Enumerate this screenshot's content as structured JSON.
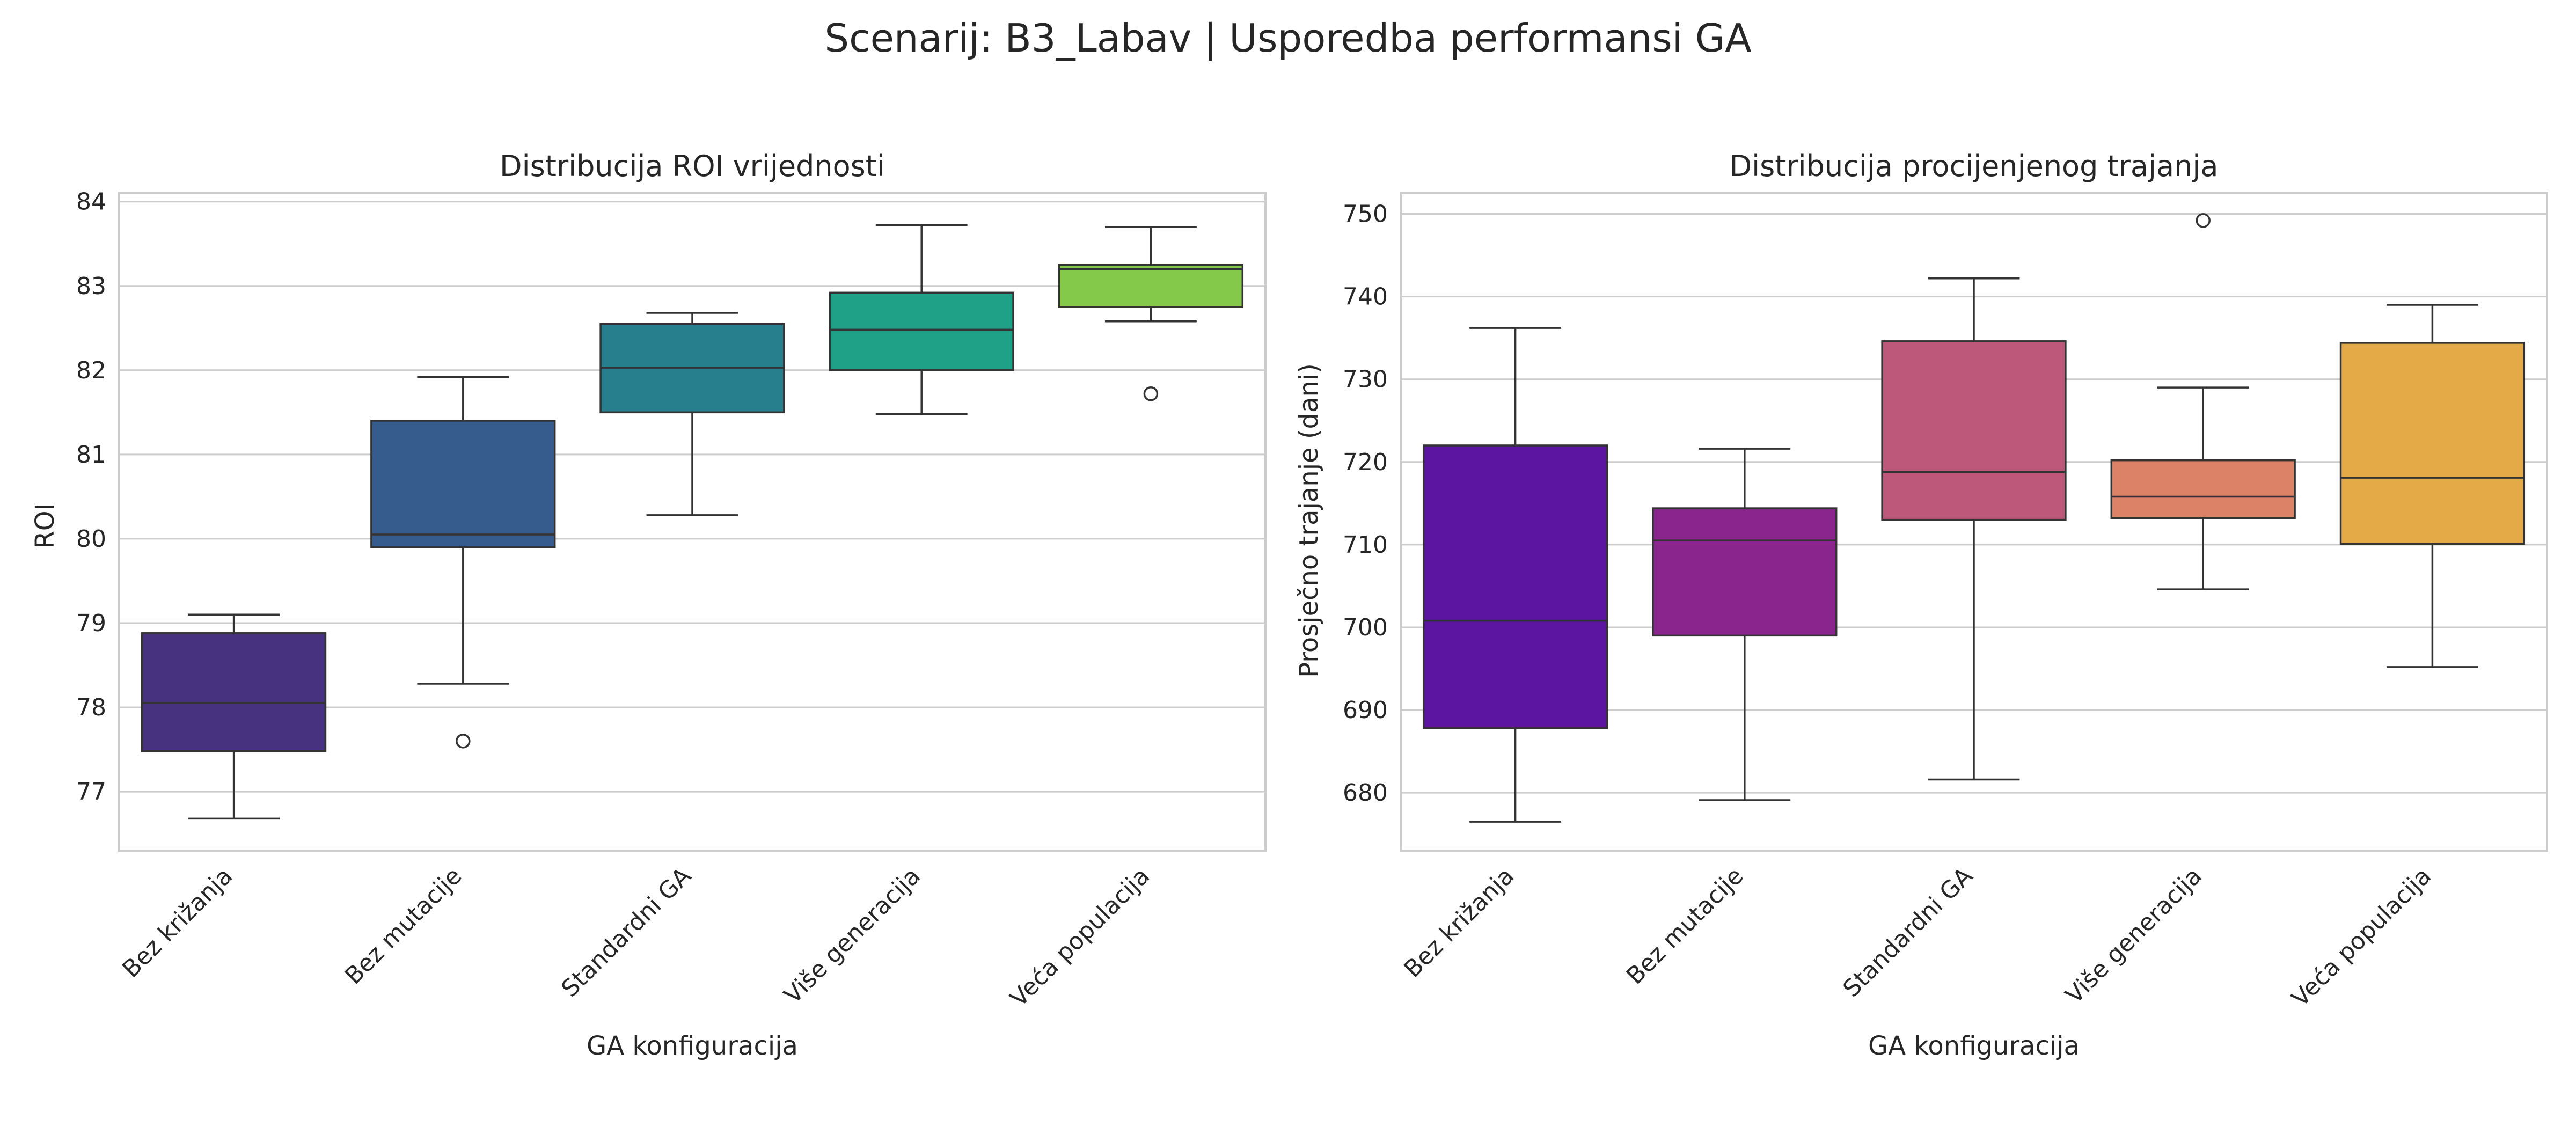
{
  "figure": {
    "title": "Scenarij: B3_Labav | Usporedba performansi GA"
  },
  "chart_data": [
    {
      "type": "box",
      "title": "Distribucija ROI vrijednosti",
      "xlabel": "GA konfiguracija",
      "ylabel": "ROI",
      "ylim": [
        76.3,
        84.1
      ],
      "yticks": [
        "77",
        "78",
        "79",
        "80",
        "81",
        "82",
        "83",
        "84"
      ],
      "grid": true,
      "categories": [
        "Bez križanja",
        "Bez mutacije",
        "Standardni GA",
        "Više generacija",
        "Veća populacija"
      ],
      "boxes": [
        {
          "category": "Bez križanja",
          "whisker_low": 76.68,
          "q1": 77.48,
          "median": 78.05,
          "q3": 78.88,
          "whisker_high": 79.1,
          "outliers": [],
          "color": "#46327e"
        },
        {
          "category": "Bez mutacije",
          "whisker_low": 78.28,
          "q1": 79.9,
          "median": 80.05,
          "q3": 81.4,
          "whisker_high": 81.92,
          "outliers": [
            77.6
          ],
          "color": "#365c8d"
        },
        {
          "category": "Standardni GA",
          "whisker_low": 80.28,
          "q1": 81.5,
          "median": 82.03,
          "q3": 82.55,
          "whisker_high": 82.68,
          "outliers": [],
          "color": "#277f8e"
        },
        {
          "category": "Više generacija",
          "whisker_low": 81.48,
          "q1": 82.0,
          "median": 82.48,
          "q3": 82.92,
          "whisker_high": 83.72,
          "outliers": [],
          "color": "#1fa187"
        },
        {
          "category": "Veća populacija",
          "whisker_low": 82.58,
          "q1": 82.75,
          "median": 83.2,
          "q3": 83.25,
          "whisker_high": 83.7,
          "outliers": [
            81.72
          ],
          "color": "#84c94a"
        }
      ]
    },
    {
      "type": "box",
      "title": "Distribucija procijenjenog trajanja",
      "xlabel": "GA konfiguracija",
      "ylabel": "Prosječno trajanje (dani)",
      "ylim": [
        673,
        752.5
      ],
      "yticks": [
        "680",
        "690",
        "700",
        "710",
        "720",
        "730",
        "740",
        "750"
      ],
      "grid": true,
      "categories": [
        "Bez križanja",
        "Bez mutacije",
        "Standardni GA",
        "Više generacija",
        "Veća populacija"
      ],
      "boxes": [
        {
          "category": "Bez križanja",
          "whisker_low": 676.5,
          "q1": 687.8,
          "median": 700.8,
          "q3": 722.0,
          "whisker_high": 736.2,
          "outliers": [],
          "color": "#5c15a0"
        },
        {
          "category": "Bez mutacije",
          "whisker_low": 679.1,
          "q1": 699.0,
          "median": 710.5,
          "q3": 714.4,
          "whisker_high": 721.6,
          "outliers": [],
          "color": "#8a258e"
        },
        {
          "category": "Standardni GA",
          "whisker_low": 681.6,
          "q1": 713.0,
          "median": 718.8,
          "q3": 734.6,
          "whisker_high": 742.2,
          "outliers": [],
          "color": "#bd587a"
        },
        {
          "category": "Više generacija",
          "whisker_low": 704.6,
          "q1": 713.2,
          "median": 715.8,
          "q3": 720.2,
          "whisker_high": 729.0,
          "outliers": [
            749.2
          ],
          "color": "#dc8267"
        },
        {
          "category": "Veća populacija",
          "whisker_low": 695.2,
          "q1": 710.1,
          "median": 718.1,
          "q3": 734.4,
          "whisker_high": 739.0,
          "outliers": [],
          "color": "#e4aa48"
        }
      ]
    }
  ]
}
